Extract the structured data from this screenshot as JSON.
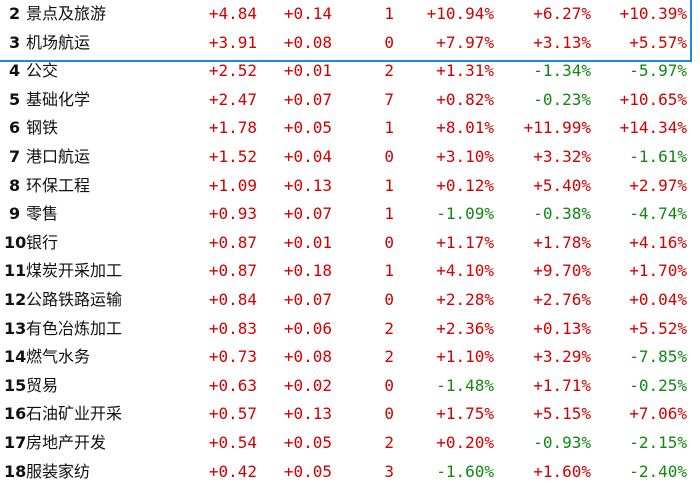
{
  "rows": [
    {
      "rank": "2",
      "name": "景点及旅游",
      "c1": "+4.84",
      "c2": "+0.14",
      "c3": "1",
      "c4": "+10.94%",
      "c5": "+6.27%",
      "c6": "+10.39%"
    },
    {
      "rank": "3",
      "name": "机场航运",
      "c1": "+3.91",
      "c2": "+0.08",
      "c3": "0",
      "c4": "+7.97%",
      "c5": "+3.13%",
      "c6": "+5.57%"
    },
    {
      "rank": "4",
      "name": "公交",
      "c1": "+2.52",
      "c2": "+0.01",
      "c3": "2",
      "c4": "+1.31%",
      "c5": "-1.34%",
      "c6": "-5.97%"
    },
    {
      "rank": "5",
      "name": "基础化学",
      "c1": "+2.47",
      "c2": "+0.07",
      "c3": "7",
      "c4": "+0.82%",
      "c5": "-0.23%",
      "c6": "+10.65%"
    },
    {
      "rank": "6",
      "name": "钢铁",
      "c1": "+1.78",
      "c2": "+0.05",
      "c3": "1",
      "c4": "+8.01%",
      "c5": "+11.99%",
      "c6": "+14.34%"
    },
    {
      "rank": "7",
      "name": "港口航运",
      "c1": "+1.52",
      "c2": "+0.04",
      "c3": "0",
      "c4": "+3.10%",
      "c5": "+3.32%",
      "c6": "-1.61%"
    },
    {
      "rank": "8",
      "name": "环保工程",
      "c1": "+1.09",
      "c2": "+0.13",
      "c3": "1",
      "c4": "+0.12%",
      "c5": "+5.40%",
      "c6": "+2.97%"
    },
    {
      "rank": "9",
      "name": "零售",
      "c1": "+0.93",
      "c2": "+0.07",
      "c3": "1",
      "c4": "-1.09%",
      "c5": "-0.38%",
      "c6": "-4.74%"
    },
    {
      "rank": "10",
      "name": "银行",
      "c1": "+0.87",
      "c2": "+0.01",
      "c3": "0",
      "c4": "+1.17%",
      "c5": "+1.78%",
      "c6": "+4.16%"
    },
    {
      "rank": "11",
      "name": "煤炭开采加工",
      "c1": "+0.87",
      "c2": "+0.18",
      "c3": "1",
      "c4": "+4.10%",
      "c5": "+9.70%",
      "c6": "+1.70%"
    },
    {
      "rank": "12",
      "name": "公路铁路运输",
      "c1": "+0.84",
      "c2": "+0.07",
      "c3": "0",
      "c4": "+2.28%",
      "c5": "+2.76%",
      "c6": "+0.04%"
    },
    {
      "rank": "13",
      "name": "有色冶炼加工",
      "c1": "+0.83",
      "c2": "+0.06",
      "c3": "2",
      "c4": "+2.36%",
      "c5": "+0.13%",
      "c6": "+5.52%"
    },
    {
      "rank": "14",
      "name": "燃气水务",
      "c1": "+0.73",
      "c2": "+0.08",
      "c3": "2",
      "c4": "+1.10%",
      "c5": "+3.29%",
      "c6": "-7.85%"
    },
    {
      "rank": "15",
      "name": "贸易",
      "c1": "+0.63",
      "c2": "+0.02",
      "c3": "0",
      "c4": "-1.48%",
      "c5": "+1.71%",
      "c6": "-0.25%"
    },
    {
      "rank": "16",
      "name": "石油矿业开采",
      "c1": "+0.57",
      "c2": "+0.13",
      "c3": "0",
      "c4": "+1.75%",
      "c5": "+5.15%",
      "c6": "+7.06%"
    },
    {
      "rank": "17",
      "name": "房地产开发",
      "c1": "+0.54",
      "c2": "+0.05",
      "c3": "2",
      "c4": "+0.20%",
      "c5": "-0.93%",
      "c6": "-2.15%"
    },
    {
      "rank": "18",
      "name": "服装家纺",
      "c1": "+0.42",
      "c2": "+0.05",
      "c3": "3",
      "c4": "-1.60%",
      "c5": "+1.60%",
      "c6": "-2.40%"
    }
  ]
}
